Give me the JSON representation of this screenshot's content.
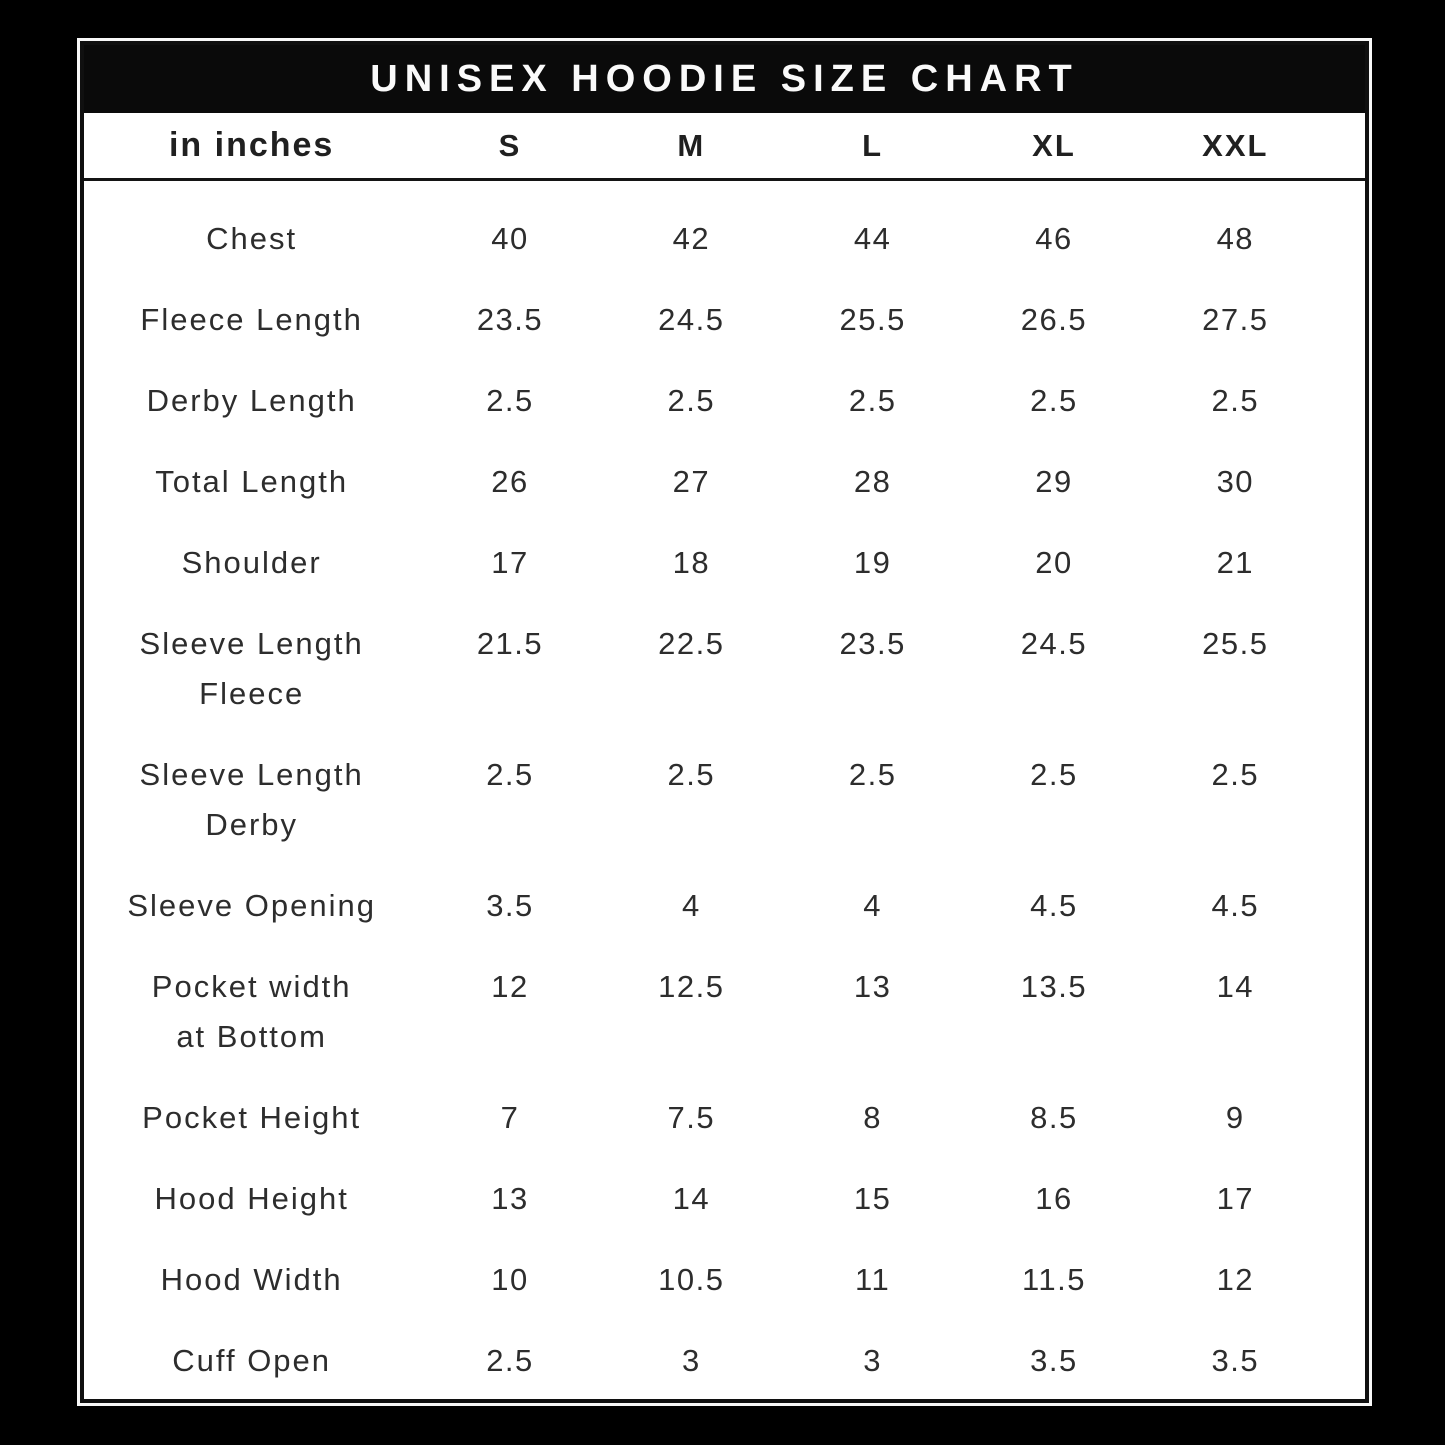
{
  "title": "UNISEX HOODIE SIZE CHART",
  "table": {
    "unit_label": "in inches",
    "sizes": [
      "S",
      "M",
      "L",
      "XL",
      "XXL"
    ],
    "rows": [
      {
        "label_lines": [
          "Chest"
        ],
        "values": [
          "40",
          "42",
          "44",
          "46",
          "48"
        ]
      },
      {
        "label_lines": [
          "Fleece Length"
        ],
        "values": [
          "23.5",
          "24.5",
          "25.5",
          "26.5",
          "27.5"
        ]
      },
      {
        "label_lines": [
          "Derby Length"
        ],
        "values": [
          "2.5",
          "2.5",
          "2.5",
          "2.5",
          "2.5"
        ]
      },
      {
        "label_lines": [
          "Total Length"
        ],
        "values": [
          "26",
          "27",
          "28",
          "29",
          "30"
        ]
      },
      {
        "label_lines": [
          "Shoulder"
        ],
        "values": [
          "17",
          "18",
          "19",
          "20",
          "21"
        ]
      },
      {
        "label_lines": [
          "Sleeve Length",
          "Fleece"
        ],
        "values": [
          "21.5",
          "22.5",
          "23.5",
          "24.5",
          "25.5"
        ]
      },
      {
        "label_lines": [
          "Sleeve Length",
          "Derby"
        ],
        "values": [
          "2.5",
          "2.5",
          "2.5",
          "2.5",
          "2.5"
        ]
      },
      {
        "label_lines": [
          "Sleeve Opening"
        ],
        "values": [
          "3.5",
          "4",
          "4",
          "4.5",
          "4.5"
        ]
      },
      {
        "label_lines": [
          "Pocket width",
          "at Bottom"
        ],
        "values": [
          "12",
          "12.5",
          "13",
          "13.5",
          "14"
        ]
      },
      {
        "label_lines": [
          "Pocket Height"
        ],
        "values": [
          "7",
          "7.5",
          "8",
          "8.5",
          "9"
        ]
      },
      {
        "label_lines": [
          "Hood Height"
        ],
        "values": [
          "13",
          "14",
          "15",
          "16",
          "17"
        ]
      },
      {
        "label_lines": [
          "Hood Width"
        ],
        "values": [
          "10",
          "10.5",
          "11",
          "11.5",
          "12"
        ]
      },
      {
        "label_lines": [
          "Cuff Open"
        ],
        "values": [
          "2.5",
          "3",
          "3",
          "3.5",
          "3.5"
        ]
      }
    ]
  },
  "colors": {
    "canvas_background": "#000000",
    "card_background": "#ffffff",
    "card_border": "#101010",
    "card_outline": "#f8f8f8",
    "title_bar_background": "#0a0a0a",
    "title_text": "#fafafa",
    "header_text": "#202020",
    "body_text": "#2d2d2d",
    "header_divider": "#141414"
  },
  "chart_data": {
    "type": "table",
    "title": "UNISEX HOODIE SIZE CHART",
    "unit": "in inches",
    "columns": [
      "S",
      "M",
      "L",
      "XL",
      "XXL"
    ],
    "rows": [
      {
        "measurement": "Chest",
        "values": [
          40,
          42,
          44,
          46,
          48
        ]
      },
      {
        "measurement": "Fleece Length",
        "values": [
          23.5,
          24.5,
          25.5,
          26.5,
          27.5
        ]
      },
      {
        "measurement": "Derby Length",
        "values": [
          2.5,
          2.5,
          2.5,
          2.5,
          2.5
        ]
      },
      {
        "measurement": "Total Length",
        "values": [
          26,
          27,
          28,
          29,
          30
        ]
      },
      {
        "measurement": "Shoulder",
        "values": [
          17,
          18,
          19,
          20,
          21
        ]
      },
      {
        "measurement": "Sleeve Length Fleece",
        "values": [
          21.5,
          22.5,
          23.5,
          24.5,
          25.5
        ]
      },
      {
        "measurement": "Sleeve Length Derby",
        "values": [
          2.5,
          2.5,
          2.5,
          2.5,
          2.5
        ]
      },
      {
        "measurement": "Sleeve Opening",
        "values": [
          3.5,
          4,
          4,
          4.5,
          4.5
        ]
      },
      {
        "measurement": "Pocket width at Bottom",
        "values": [
          12,
          12.5,
          13,
          13.5,
          14
        ]
      },
      {
        "measurement": "Pocket Height",
        "values": [
          7,
          7.5,
          8,
          8.5,
          9
        ]
      },
      {
        "measurement": "Hood Height",
        "values": [
          13,
          14,
          15,
          16,
          17
        ]
      },
      {
        "measurement": "Hood Width",
        "values": [
          10,
          10.5,
          11,
          11.5,
          12
        ]
      },
      {
        "measurement": "Cuff Open",
        "values": [
          2.5,
          3,
          3,
          3.5,
          3.5
        ]
      }
    ]
  }
}
